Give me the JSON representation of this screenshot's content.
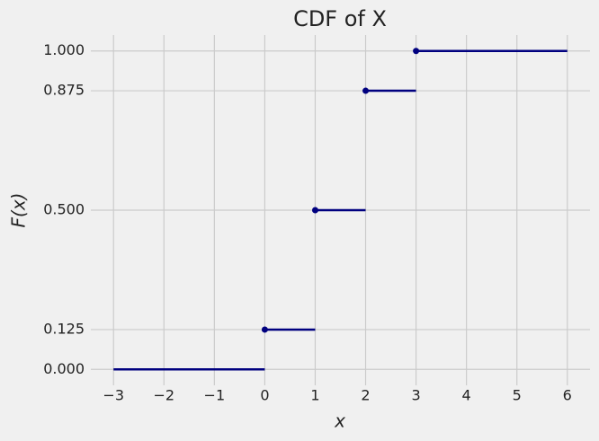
{
  "chart_data": {
    "type": "step",
    "title": "CDF of X",
    "xlabel": "x",
    "ylabel": "F(x)",
    "segments": {
      "x_start": [
        -3,
        0,
        1,
        2,
        3
      ],
      "x_end": [
        0,
        1,
        2,
        3,
        6
      ],
      "values": [
        0,
        0.125,
        0.5,
        0.875,
        1
      ]
    },
    "points": {
      "x": [
        0,
        1,
        2,
        3
      ],
      "values": [
        0.125,
        0.5,
        0.875,
        1
      ]
    },
    "color": "#00007f",
    "xlim": [
      -3.45,
      6.45
    ],
    "ylim": [
      -0.05,
      1.05
    ],
    "xticks": [
      {
        "value": -3,
        "label": "−3"
      },
      {
        "value": -2,
        "label": "−2"
      },
      {
        "value": -1,
        "label": "−1"
      },
      0,
      1,
      2,
      3,
      4,
      5,
      6
    ],
    "yticks": [
      {
        "value": 0,
        "label": "0.000"
      },
      {
        "value": 0.125,
        "label": "0.125"
      },
      {
        "value": 0.5,
        "label": "0.500"
      },
      {
        "value": 0.875,
        "label": "0.875"
      },
      {
        "value": 1,
        "label": "1.000"
      }
    ],
    "grid": true
  }
}
